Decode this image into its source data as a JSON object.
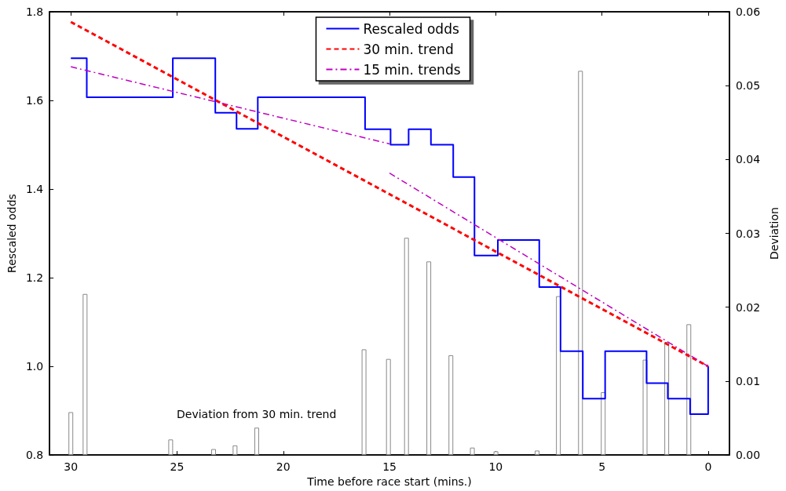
{
  "chart_data": {
    "type": "line",
    "xlabel": "Time before race start (mins.)",
    "ylabel": "Rescaled odds",
    "y2label": "Deviation",
    "annotations": [
      "Deviation from 30 min. trend"
    ],
    "xlim": [
      31,
      -1
    ],
    "xticks": [
      30,
      25,
      20,
      15,
      10,
      5,
      0
    ],
    "ylim": [
      0.8,
      1.8
    ],
    "yticks": [
      {
        "value": 0.8,
        "label": "0.8"
      },
      {
        "value": 1.0,
        "label": "1.0"
      },
      {
        "value": 1.2,
        "label": "1.2"
      },
      {
        "value": 1.4,
        "label": "1.4"
      },
      {
        "value": 1.6,
        "label": "1.6"
      },
      {
        "value": 1.8,
        "label": "1.8"
      }
    ],
    "y2lim": [
      0,
      0.06
    ],
    "y2ticks": [
      {
        "value": 0,
        "label": "0.00"
      },
      {
        "value": 0.01,
        "label": "0.01"
      },
      {
        "value": 0.02,
        "label": "0.02"
      },
      {
        "value": 0.03,
        "label": "0.03"
      },
      {
        "value": 0.04,
        "label": "0.04"
      },
      {
        "value": 0.05,
        "label": "0.05"
      },
      {
        "value": 0.06,
        "label": "0.06"
      }
    ],
    "grid": false,
    "legend": "top",
    "marker": "none",
    "series": [
      {
        "name": "Rescaled odds",
        "type": "step",
        "color": "#0000ff",
        "line_style": "solid",
        "x": [
          30,
          29.25,
          25.2,
          23.2,
          22.2,
          21.2,
          16.15,
          14.95,
          14.1,
          13.05,
          12.0,
          11.0,
          9.9,
          7.95,
          6.95,
          5.9,
          4.85,
          2.9,
          1.9,
          0.85,
          0
        ],
        "values": [
          1.695,
          1.607,
          1.695,
          1.572,
          1.536,
          1.607,
          1.535,
          1.5,
          1.535,
          1.5,
          1.427,
          1.25,
          1.285,
          1.179,
          1.034,
          0.927,
          1.034,
          0.962,
          0.927,
          0.892,
          1.0
        ]
      },
      {
        "name": "30 min. trend",
        "color": "#ff0000",
        "line_style": "dashed",
        "x": [
          30,
          0
        ],
        "values": [
          1.777,
          1.0
        ]
      },
      {
        "name": "15 min. trends",
        "color": "#bf00bf",
        "line_style": "dashdot",
        "x": [
          30,
          15
        ],
        "values": [
          1.676,
          1.502
        ]
      },
      {
        "color": "#bf00bf",
        "line_style": "dashdot",
        "x": [
          15,
          0
        ],
        "values": [
          1.436,
          1.0
        ]
      },
      {
        "type": "bar",
        "axis": "y2",
        "color": "#888888",
        "x": [
          30.0,
          29.33,
          25.3,
          23.28,
          22.27,
          21.25,
          16.2,
          15.05,
          14.2,
          13.15,
          12.11,
          11.1,
          9.99,
          8.05,
          7.05,
          6.01,
          4.94,
          2.97,
          1.95,
          0.91
        ],
        "values": [
          0.0058,
          0.0218,
          0.0021,
          0.0008,
          0.0013,
          0.0037,
          0.0143,
          0.013,
          0.0294,
          0.0262,
          0.0135,
          0.001,
          0.0005,
          0.0006,
          0.0215,
          0.052,
          0.0085,
          0.0129,
          0.0153,
          0.0177
        ]
      }
    ]
  }
}
